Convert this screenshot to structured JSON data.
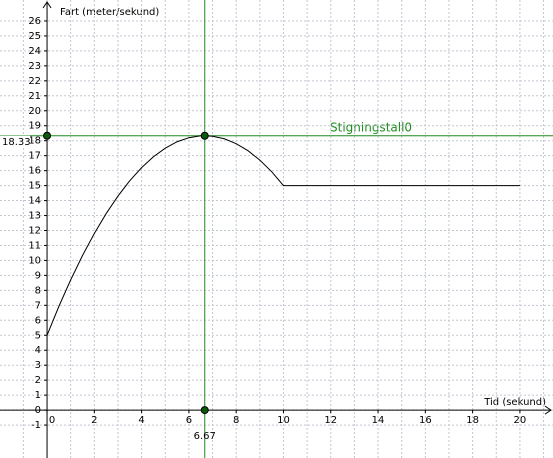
{
  "chart_data": {
    "type": "line",
    "x_label": "Tid (sekund)",
    "y_label": "Fart (meter/sekund)",
    "x": [
      0,
      0.5,
      1,
      1.5,
      2,
      2.5,
      3,
      3.5,
      4,
      4.5,
      5,
      5.5,
      6,
      6.5,
      6.67,
      7,
      7.5,
      8,
      8.5,
      9,
      9.5,
      10,
      20
    ],
    "values": [
      5,
      6.93,
      8.7,
      10.33,
      11.8,
      13.13,
      14.3,
      15.33,
      16.2,
      16.93,
      17.5,
      17.93,
      18.2,
      18.33,
      18.33,
      18.3,
      18.13,
      17.8,
      17.33,
      16.7,
      15.93,
      15,
      15
    ],
    "color": "#000000",
    "xlim": [
      -1.99,
      21.4
    ],
    "ylim": [
      -3.2,
      27.4
    ],
    "xticks": [
      0,
      2,
      4,
      6,
      8,
      10,
      12,
      14,
      16,
      18,
      20
    ],
    "yticks": [
      -1,
      0,
      1,
      2,
      3,
      4,
      5,
      6,
      7,
      8,
      9,
      10,
      11,
      12,
      13,
      14,
      15,
      16,
      17,
      18,
      19,
      20,
      21,
      22,
      23,
      24,
      25,
      26
    ],
    "grid": true,
    "marker": {
      "x": 6.67,
      "y": 18.33,
      "color": "#1e8c1e"
    },
    "annotation": "Stigningstall0"
  }
}
